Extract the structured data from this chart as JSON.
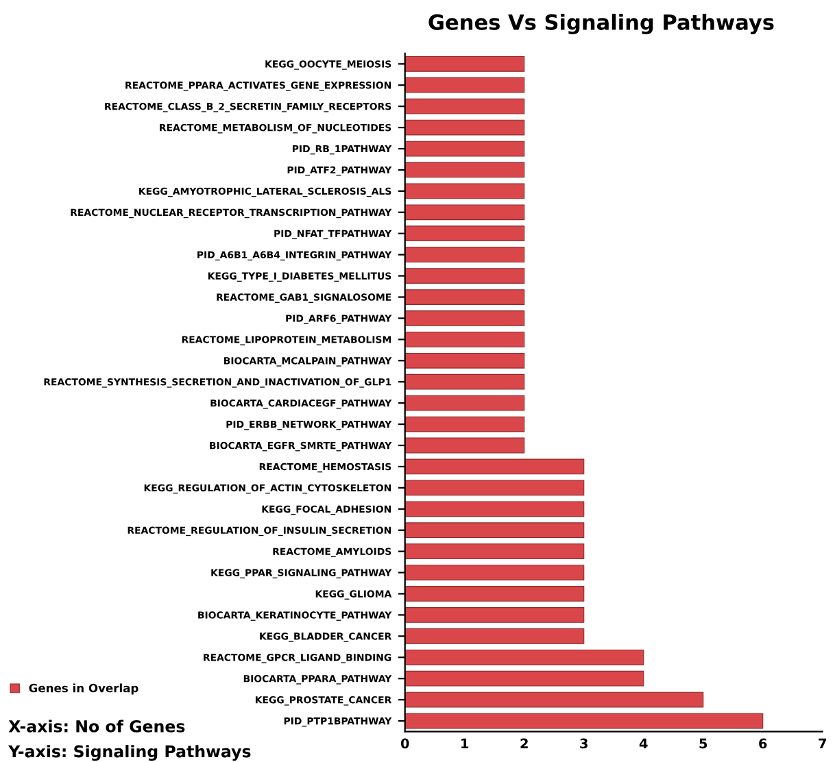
{
  "chart_data": {
    "type": "bar",
    "orientation": "horizontal",
    "title": "Genes Vs Signaling Pathways",
    "categories": [
      "KEGG_OOCYTE_MEIOSIS",
      "REACTOME_PPARA_ACTIVATES_GENE_EXPRESSION",
      "REACTOME_CLASS_B_2_SECRETIN_FAMILY_RECEPTORS",
      "REACTOME_METABOLISM_OF_NUCLEOTIDES",
      "PID_RB_1PATHWAY",
      "PID_ATF2_PATHWAY",
      "KEGG_AMYOTROPHIC_LATERAL_SCLEROSIS_ALS",
      "REACTOME_NUCLEAR_RECEPTOR_TRANSCRIPTION_PATHWAY",
      "PID_NFAT_TFPATHWAY",
      "PID_A6B1_A6B4_INTEGRIN_PATHWAY",
      "KEGG_TYPE_I_DIABETES_MELLITUS",
      "REACTOME_GAB1_SIGNALOSOME",
      "PID_ARF6_PATHWAY",
      "REACTOME_LIPOPROTEIN_METABOLISM",
      "BIOCARTA_MCALPAIN_PATHWAY",
      "REACTOME_SYNTHESIS_SECRETION_AND_INACTIVATION_OF_GLP1",
      "BIOCARTA_CARDIACEGF_PATHWAY",
      "PID_ERBB_NETWORK_PATHWAY",
      "BIOCARTA_EGFR_SMRTE_PATHWAY",
      "REACTOME_HEMOSTASIS",
      "KEGG_REGULATION_OF_ACTIN_CYTOSKELETON",
      "KEGG_FOCAL_ADHESION",
      "REACTOME_REGULATION_OF_INSULIN_SECRETION",
      "REACTOME_AMYLOIDS",
      "KEGG_PPAR_SIGNALING_PATHWAY",
      "KEGG_GLIOMA",
      "BIOCARTA_KERATINOCYTE_PATHWAY",
      "KEGG_BLADDER_CANCER",
      "REACTOME_GPCR_LIGAND_BINDING",
      "BIOCARTA_PPARA_PATHWAY",
      "KEGG_PROSTATE_CANCER",
      "PID_PTP1BPATHWAY"
    ],
    "series": [
      {
        "name": "Genes in Overlap",
        "color": "#d9474a",
        "values": [
          2,
          2,
          2,
          2,
          2,
          2,
          2,
          2,
          2,
          2,
          2,
          2,
          2,
          2,
          2,
          2,
          2,
          2,
          2,
          3,
          3,
          3,
          3,
          3,
          3,
          3,
          3,
          3,
          4,
          4,
          5,
          6
        ]
      }
    ],
    "xlim": [
      0,
      7
    ],
    "xticks": [
      0,
      1,
      2,
      3,
      4,
      5,
      6,
      7
    ],
    "legend": "bottom left",
    "annotations": [
      "X-axis: No of Genes",
      "Y-axis: Signaling Pathways"
    ]
  }
}
